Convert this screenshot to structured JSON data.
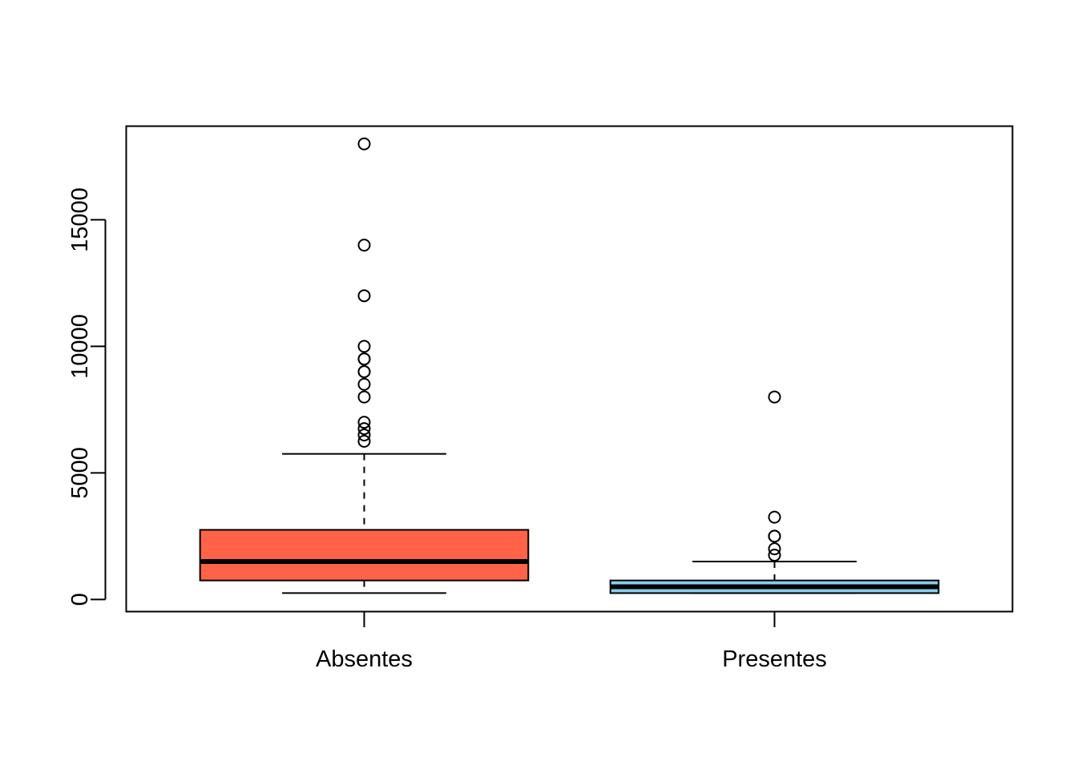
{
  "chart_data": {
    "type": "boxplot",
    "title": "",
    "xlabel": "",
    "ylabel": "",
    "ylim": [
      -480,
      18700
    ],
    "yticks": [
      0,
      5000,
      10000,
      15000
    ],
    "ytick_labels": [
      "0",
      "5000",
      "10000",
      "15000"
    ],
    "categories": [
      "Absentes",
      "Presentes"
    ],
    "boxes": [
      {
        "name": "Absentes",
        "color": "#FF6347",
        "whisker_low": 250,
        "q1": 750,
        "median": 1500,
        "q3": 2750,
        "whisker_high": 5750,
        "outliers": [
          6250,
          6500,
          6750,
          7000,
          8000,
          8500,
          9000,
          9000,
          9500,
          9500,
          10000,
          12000,
          14000,
          18000
        ]
      },
      {
        "name": "Presentes",
        "color": "#87CEEB",
        "whisker_low": 250,
        "q1": 250,
        "median": 500,
        "q3": 750,
        "whisker_high": 1500,
        "outliers": [
          1750,
          2000,
          2500,
          2500,
          3250,
          8000
        ]
      }
    ]
  }
}
